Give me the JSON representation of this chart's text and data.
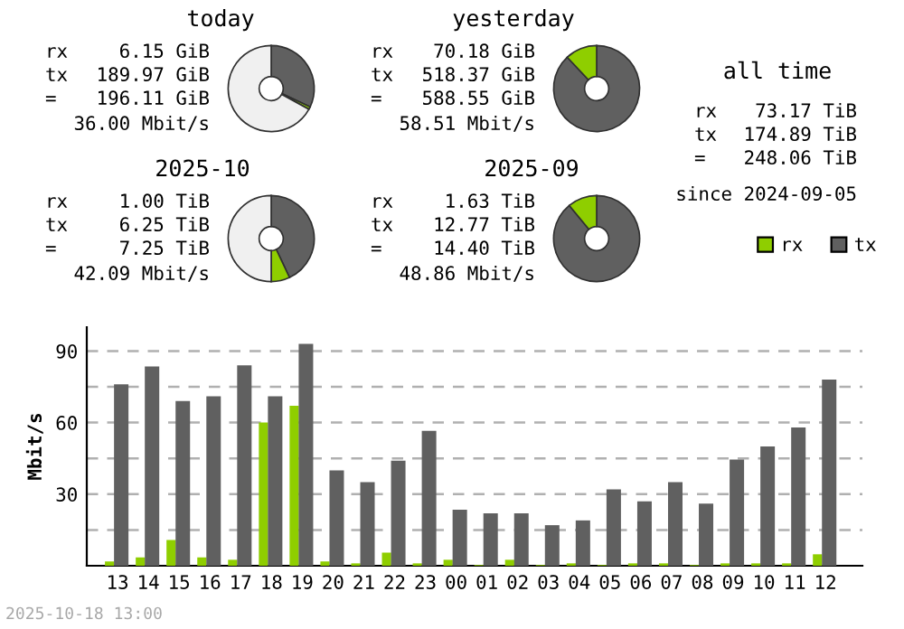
{
  "chart_data": [
    {
      "type": "donut",
      "title": "today",
      "categories": [
        null,
        null,
        null
      ],
      "values": [
        32,
        1,
        67
      ],
      "colors": [
        "#606060",
        "#8fce00",
        "#f0f0f0"
      ],
      "annotations": [
        "rx 6.15 GiB",
        "tx 189.97 GiB",
        "= 196.11 GiB",
        "36.00 Mbit/s"
      ]
    },
    {
      "type": "donut",
      "title": "yesterday",
      "categories": [
        null,
        null
      ],
      "values": [
        88,
        12
      ],
      "colors": [
        "#606060",
        "#8fce00"
      ],
      "annotations": [
        "rx 70.18 GiB",
        "tx 518.37 GiB",
        "= 588.55 GiB",
        "58.51 Mbit/s"
      ]
    },
    {
      "type": "other",
      "title": "all time",
      "annotations": [
        "rx 73.17 TiB",
        "tx 174.89 TiB",
        "= 248.06 TiB",
        "since 2024-09-05"
      ]
    },
    {
      "type": "donut",
      "title": "2025-10",
      "categories": [
        null,
        null,
        null
      ],
      "values": [
        43,
        7,
        50
      ],
      "colors": [
        "#606060",
        "#8fce00",
        "#f0f0f0"
      ],
      "annotations": [
        "rx 1.00 TiB",
        "tx 6.25 TiB",
        "= 7.25 TiB",
        "42.09 Mbit/s"
      ]
    },
    {
      "type": "donut",
      "title": "2025-09",
      "categories": [
        null,
        null
      ],
      "values": [
        89,
        11
      ],
      "colors": [
        "#606060",
        "#8fce00"
      ],
      "annotations": [
        "rx 1.63 TiB",
        "tx 12.77 TiB",
        "= 14.40 TiB",
        "48.86 Mbit/s"
      ]
    },
    {
      "type": "bar",
      "ylabel": "Mbit/s",
      "categories": [
        "13",
        "14",
        "15",
        "16",
        "17",
        "18",
        "19",
        "20",
        "21",
        "22",
        "23",
        "00",
        "01",
        "02",
        "03",
        "04",
        "05",
        "06",
        "07",
        "08",
        "09",
        "10",
        "11",
        "12"
      ],
      "series": [
        {
          "name": "rx",
          "color": "#8fce00",
          "values": [
            1.8,
            3.5,
            10.8,
            3.5,
            2.5,
            60,
            67,
            1.8,
            1,
            5.5,
            1,
            2.5,
            0.3,
            2.5,
            0.3,
            1,
            0.3,
            1,
            1,
            0.3,
            1,
            1,
            1,
            4.8
          ]
        },
        {
          "name": "tx",
          "color": "#606060",
          "values": [
            76,
            83.5,
            69,
            71,
            84,
            71,
            93,
            40,
            35,
            44,
            56.5,
            23.5,
            22,
            22,
            17,
            19,
            32,
            27,
            35,
            26,
            44.5,
            50,
            58,
            78
          ]
        }
      ],
      "ylim": [
        0,
        100
      ],
      "yticks": [
        {
          "value": 15,
          "label": null
        },
        30,
        {
          "value": 45,
          "label": null
        },
        60,
        {
          "value": 75,
          "label": null
        },
        90
      ],
      "grid": "y",
      "legend": "top right",
      "annotations": [
        "2025-10-18 13:00"
      ]
    }
  ]
}
